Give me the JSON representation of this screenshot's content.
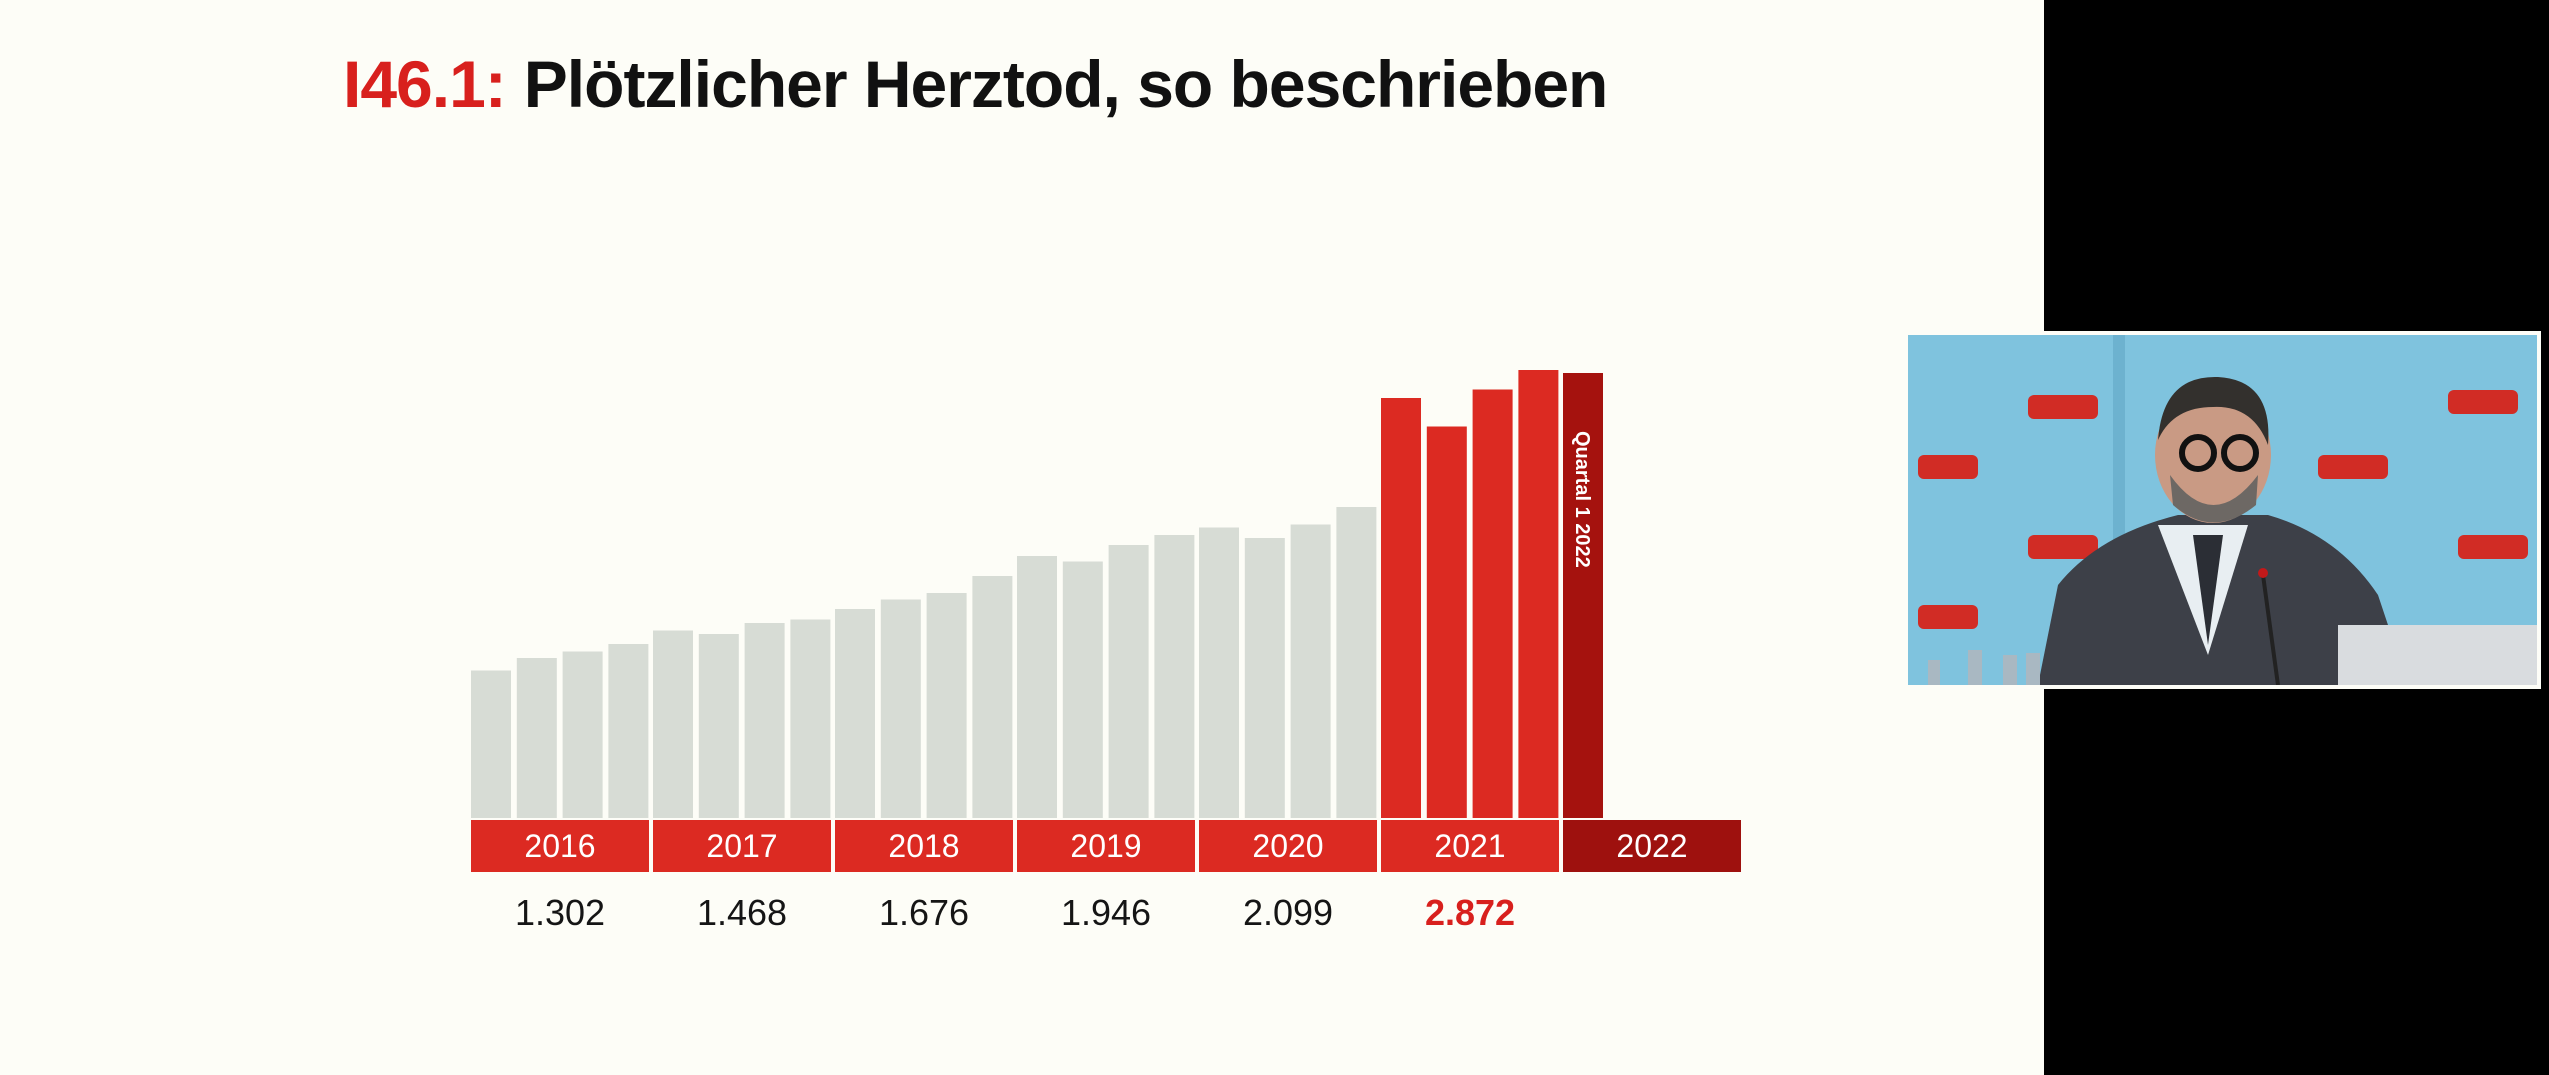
{
  "slide": {
    "title_code": "I46.1:",
    "title_text": "Plötzlicher Herztod, so beschrieben"
  },
  "colors": {
    "background": "#fdfdf7",
    "bar_grey": "#d7dcd5",
    "bar_red": "#dc2a22",
    "bar_dark_red": "#a5120e",
    "label_red": "#d8201d",
    "year_band_red": "#dc2a22",
    "year_band_2022": "#9e110e"
  },
  "chart_data": {
    "type": "bar",
    "title": "Plötzlicher Herztod, so beschrieben",
    "categories": [
      "2016",
      "2017",
      "2018",
      "2019",
      "2020",
      "2021",
      "2022"
    ],
    "annual_totals": [
      "1.302",
      "1.468",
      "1.676",
      "1.946",
      "2.099",
      "2.872",
      ""
    ],
    "highlighted_total": "2.872",
    "quarterly_bars": [
      {
        "year": "2016",
        "values": [
          295,
          320,
          333,
          348
        ]
      },
      {
        "year": "2017",
        "values": [
          375,
          368,
          390,
          397
        ]
      },
      {
        "year": "2018",
        "values": [
          418,
          437,
          450,
          484
        ]
      },
      {
        "year": "2019",
        "values": [
          524,
          513,
          546,
          566
        ]
      },
      {
        "year": "2020",
        "values": [
          581,
          560,
          587,
          622
        ]
      },
      {
        "year": "2021",
        "values": [
          840,
          783,
          857,
          896
        ]
      },
      {
        "year": "2022",
        "values": [
          890
        ]
      }
    ],
    "annotation": "Quartal 1 2022",
    "axis": {
      "y_range": [
        0,
        900
      ],
      "grid": false,
      "y_ticks_shown": false
    }
  }
}
